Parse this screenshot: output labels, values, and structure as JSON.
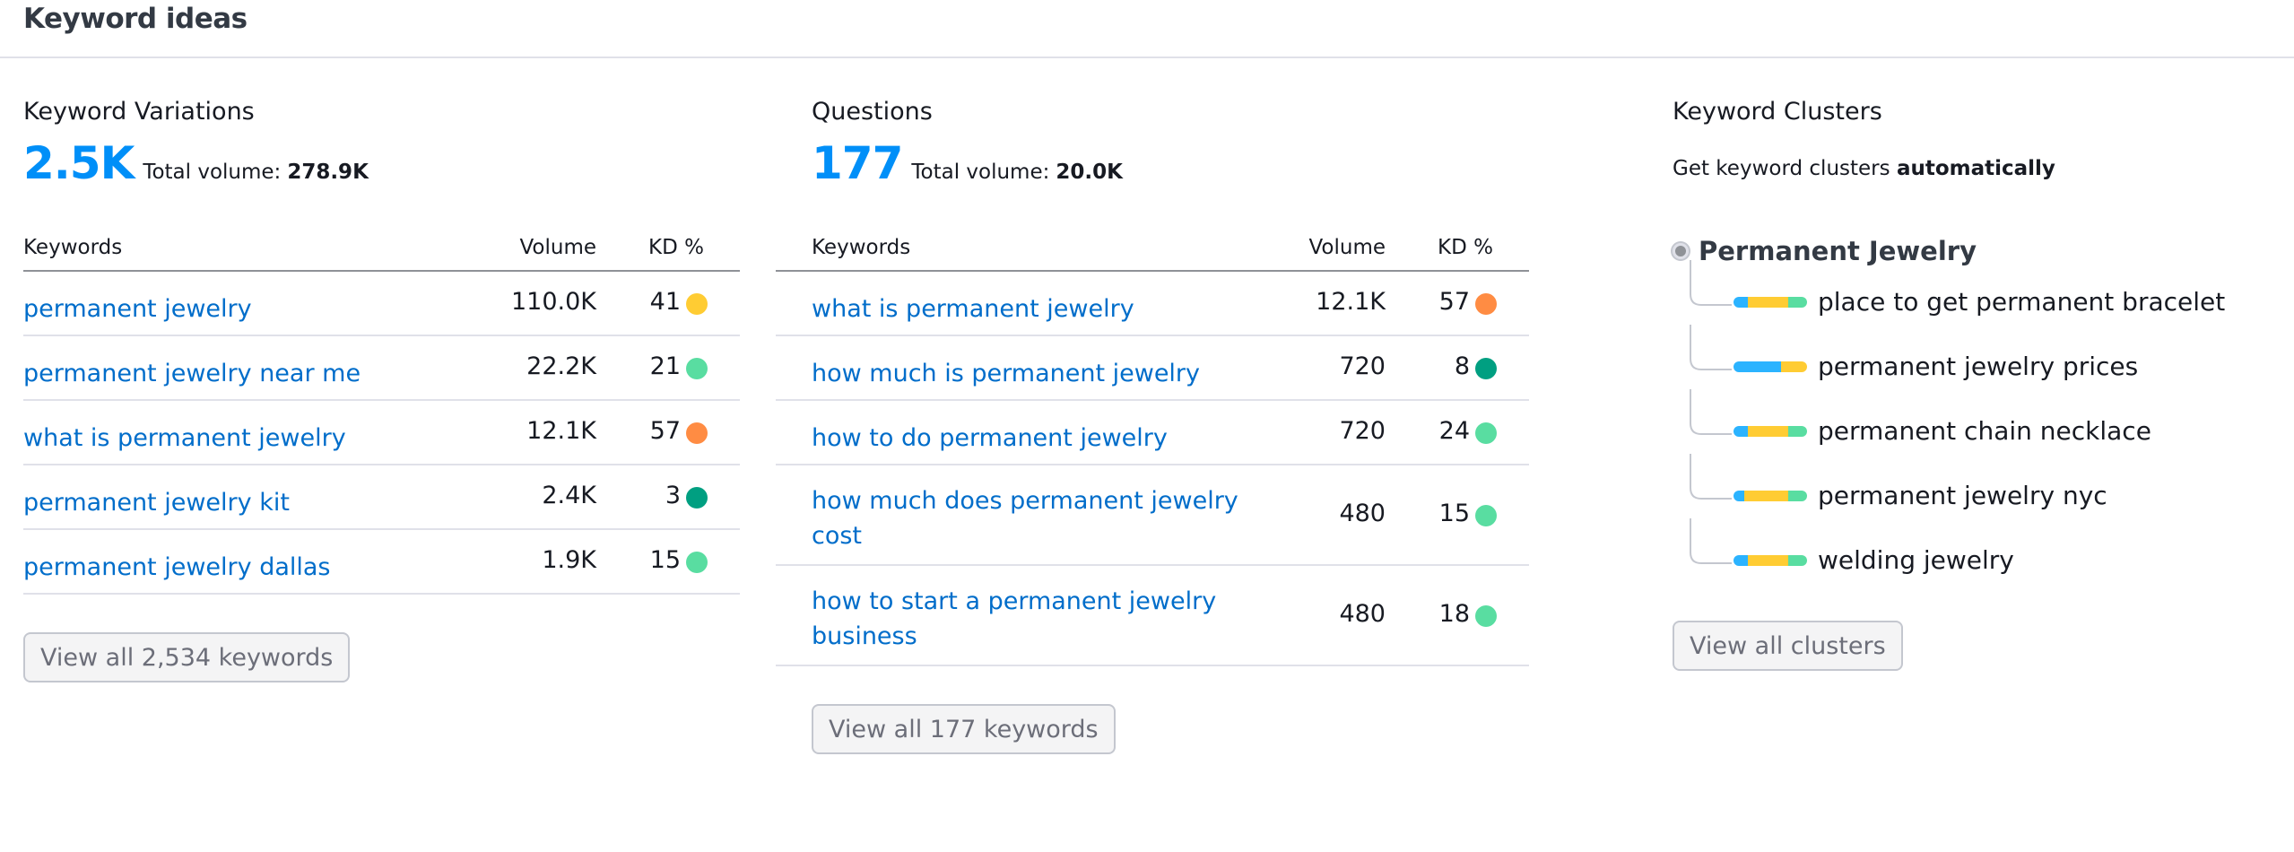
{
  "header": {
    "title": "Keyword ideas"
  },
  "variations": {
    "title": "Keyword Variations",
    "count": "2.5K",
    "total_label": "Total volume:",
    "total_value": "278.9K",
    "columns": {
      "keyword": "Keywords",
      "volume": "Volume",
      "kd": "KD %"
    },
    "rows": [
      {
        "keyword": "permanent jewelry",
        "volume": "110.0K",
        "kd": "41",
        "kd_color": "#ffcc33"
      },
      {
        "keyword": "permanent jewelry near me",
        "volume": "22.2K",
        "kd": "21",
        "kd_color": "#59dda1"
      },
      {
        "keyword": "what is permanent jewelry",
        "volume": "12.1K",
        "kd": "57",
        "kd_color": "#ff8c43"
      },
      {
        "keyword": "permanent jewelry kit",
        "volume": "2.4K",
        "kd": "3",
        "kd_color": "#009f81"
      },
      {
        "keyword": "permanent jewelry dallas",
        "volume": "1.9K",
        "kd": "15",
        "kd_color": "#59dda1"
      }
    ],
    "button": "View all 2,534 keywords"
  },
  "questions": {
    "title": "Questions",
    "count": "177",
    "total_label": "Total volume:",
    "total_value": "20.0K",
    "columns": {
      "keyword": "Keywords",
      "volume": "Volume",
      "kd": "KD %"
    },
    "rows": [
      {
        "keyword": "what is permanent jewelry",
        "volume": "12.1K",
        "kd": "57",
        "kd_color": "#ff8c43"
      },
      {
        "keyword": "how much is permanent jewelry",
        "volume": "720",
        "kd": "8",
        "kd_color": "#009f81"
      },
      {
        "keyword": "how to do permanent jewelry",
        "volume": "720",
        "kd": "24",
        "kd_color": "#59dda1"
      },
      {
        "keyword": "how much does permanent jewelry cost",
        "volume": "480",
        "kd": "15",
        "kd_color": "#59dda1"
      },
      {
        "keyword": "how to start a permanent jewelry business",
        "volume": "480",
        "kd": "18",
        "kd_color": "#59dda1"
      }
    ],
    "button": "View all 177 keywords"
  },
  "clusters": {
    "title": "Keyword Clusters",
    "subtitle_prefix": "Get keyword clusters",
    "subtitle_bold": "automatically",
    "root": "Permanent Jewelry",
    "items": [
      {
        "label": "place to get permanent bracelet",
        "bar": [
          0.2,
          0.55,
          0.25
        ]
      },
      {
        "label": "permanent jewelry prices",
        "bar": [
          0.65,
          0.35,
          0
        ]
      },
      {
        "label": "permanent chain necklace",
        "bar": [
          0.2,
          0.55,
          0.25
        ]
      },
      {
        "label": "permanent jewelry nyc",
        "bar": [
          0.15,
          0.6,
          0.25
        ]
      },
      {
        "label": "welding jewelry",
        "bar": [
          0.2,
          0.55,
          0.25
        ]
      }
    ],
    "bar_colors": [
      "#2bb3ff",
      "#ffcc33",
      "#59dda1"
    ],
    "button": "View all clusters"
  }
}
